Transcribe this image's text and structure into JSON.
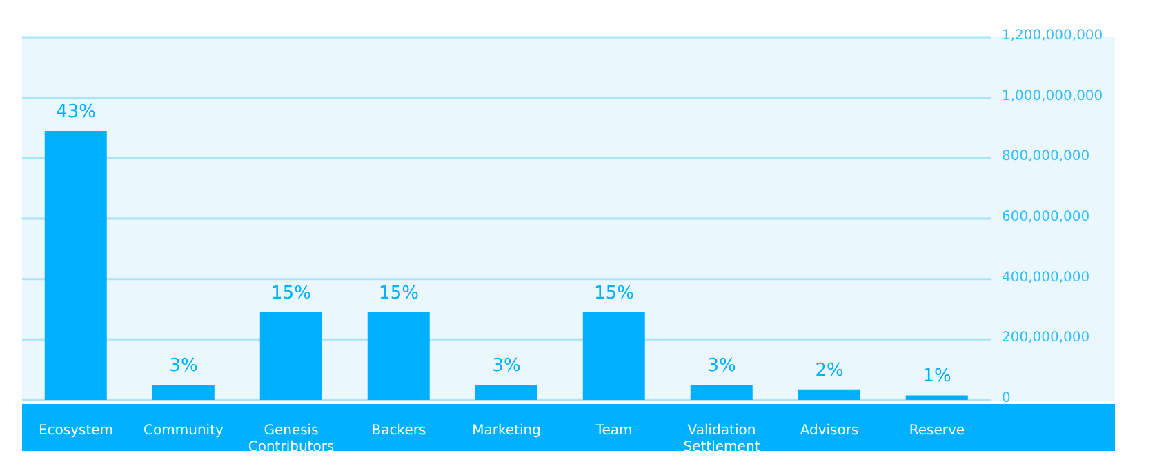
{
  "chart_data": {
    "type": "bar",
    "categories": [
      "Ecosystem",
      "Community",
      "Genesis Contributors",
      "Backers",
      "Marketing",
      "Team",
      "Validation Settlement",
      "Advisors",
      "Reserve"
    ],
    "values": [
      890000000,
      50000000,
      290000000,
      290000000,
      50000000,
      290000000,
      50000000,
      35000000,
      15000000
    ],
    "annotations": [
      {
        "text": "43%",
        "x": "Ecosystem",
        "y": 890000000
      },
      {
        "text": "3%",
        "x": "Community",
        "y": 50000000
      },
      {
        "text": "15%",
        "x": "Genesis Contributors",
        "y": 290000000
      },
      {
        "text": "15%",
        "x": "Backers",
        "y": 290000000
      },
      {
        "text": "3%",
        "x": "Marketing",
        "y": 50000000
      },
      {
        "text": "15%",
        "x": "Team",
        "y": 290000000
      },
      {
        "text": "3%",
        "x": "Validation Settlement",
        "y": 50000000
      },
      {
        "text": "2%",
        "x": "Advisors",
        "y": 35000000
      },
      {
        "text": "1%",
        "x": "Reserve",
        "y": 15000000
      }
    ],
    "color": "#00b0ff",
    "ylim": [
      0,
      1200000000
    ],
    "yticks": [
      0,
      {
        "value": 200000000,
        "label": "200,000,000"
      },
      {
        "value": 400000000,
        "label": "400,000,000"
      },
      {
        "value": 600000000,
        "label": "600,000,000"
      },
      {
        "value": 800000000,
        "label": "800,000,000"
      },
      {
        "value": 1000000000,
        "label": "1,000,000,000"
      },
      {
        "value": 1200000000,
        "label": "1,200,000,000"
      }
    ],
    "grid": "y"
  }
}
